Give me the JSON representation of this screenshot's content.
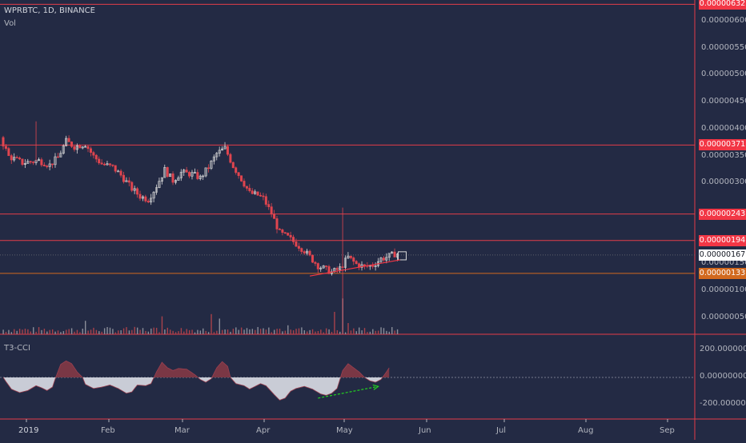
{
  "header": {
    "symbol": "WPRBTC, 1D, BINANCE",
    "volume_label": "Vol",
    "indicator_label": "T3-CCI"
  },
  "colors": {
    "background": "#232a44",
    "up": "#d9d9d9",
    "down": "#e0454f",
    "level_line": "#e33c48",
    "level_tag": "#f23645",
    "support_tag": "#d2691e",
    "cci_positive": "#7a3745",
    "cci_negative": "#c9ccd6",
    "divergence_arrow": "#22d41f"
  },
  "chart_data": {
    "type": "candlestick",
    "price_axis": {
      "ticks": [
        "0.00000600",
        "0.00000550",
        "0.00000500",
        "0.00000450",
        "0.00000400",
        "0.00000350",
        "0.00000300",
        "0.00000150",
        "0.00000100",
        "0.00000050"
      ],
      "ylim": [
        2e-07,
        6.4e-06
      ]
    },
    "time_axis": {
      "ticks": [
        "2019",
        "Feb",
        "Mar",
        "Apr",
        "May",
        "Jun",
        "Jul",
        "Aug",
        "Sep"
      ]
    },
    "horizontal_levels": [
      {
        "label": "0.00000632",
        "value": 6.32e-06,
        "kind": "resistance"
      },
      {
        "label": "0.00000371",
        "value": 3.71e-06,
        "kind": "resistance"
      },
      {
        "label": "0.00000243",
        "value": 2.43e-06,
        "kind": "resistance"
      },
      {
        "label": "0.00000194",
        "value": 1.94e-06,
        "kind": "resistance"
      },
      {
        "label": "0.00000167",
        "value": 1.67e-06,
        "kind": "last_price"
      },
      {
        "label": "0.00000133",
        "value": 1.33e-06,
        "kind": "support"
      }
    ],
    "cci_axis": {
      "ticks": [
        "200.00000000",
        "0.00000000",
        "-200.00000000"
      ],
      "ylim": [
        -290,
        290
      ]
    },
    "price_path": [
      [
        0,
        3.85e-06
      ],
      [
        3,
        3.5e-06
      ],
      [
        8,
        3.38e-06
      ],
      [
        14,
        3.42e-06
      ],
      [
        18,
        3.34e-06
      ],
      [
        21,
        3.48e-06
      ],
      [
        24,
        3.78e-06
      ],
      [
        27,
        3.68e-06
      ],
      [
        31,
        3.73e-06
      ],
      [
        34,
        3.5e-06
      ],
      [
        37,
        3.36e-06
      ],
      [
        41,
        3.3e-06
      ],
      [
        44,
        3.15e-06
      ],
      [
        48,
        2.9e-06
      ],
      [
        51,
        2.76e-06
      ],
      [
        54,
        2.7e-06
      ],
      [
        57,
        2.95e-06
      ],
      [
        60,
        3.25e-06
      ],
      [
        63,
        3.05e-06
      ],
      [
        66,
        3.2e-06
      ],
      [
        70,
        3.17e-06
      ],
      [
        73,
        3.1e-06
      ],
      [
        76,
        3.3e-06
      ],
      [
        79,
        3.55e-06
      ],
      [
        82,
        3.65e-06
      ],
      [
        85,
        3.32e-06
      ],
      [
        88,
        3.08e-06
      ],
      [
        91,
        2.82e-06
      ],
      [
        94,
        2.78e-06
      ],
      [
        96,
        2.72e-06
      ],
      [
        99,
        2.44e-06
      ],
      [
        102,
        2.08e-06
      ],
      [
        105,
        2e-06
      ],
      [
        108,
        1.88e-06
      ],
      [
        111,
        1.75e-06
      ],
      [
        114,
        1.58e-06
      ],
      [
        116,
        1.47e-06
      ],
      [
        119,
        1.4e-06
      ],
      [
        121,
        1.35e-06
      ],
      [
        124,
        1.42e-06
      ],
      [
        127,
        1.63e-06
      ],
      [
        130,
        1.5e-06
      ],
      [
        133,
        1.45e-06
      ],
      [
        136,
        1.48e-06
      ],
      [
        139,
        1.6e-06
      ],
      [
        141,
        1.63e-06
      ],
      [
        144,
        1.69e-06
      ]
    ],
    "candle_count": 145,
    "spikes": [
      {
        "day": 12,
        "high": 4.15e-06
      },
      {
        "day": 124,
        "high": 2.55e-06
      },
      {
        "day": 124,
        "low": 2e-07
      }
    ],
    "support_trendline": {
      "from": [
        112,
        1.28e-06
      ],
      "to": [
        145,
        1.58e-06
      ]
    },
    "cci_path": [
      [
        0,
        0
      ],
      [
        1,
        -30
      ],
      [
        3,
        -85
      ],
      [
        6,
        -110
      ],
      [
        9,
        -95
      ],
      [
        12,
        -60
      ],
      [
        14,
        -75
      ],
      [
        16,
        -95
      ],
      [
        18,
        -70
      ],
      [
        19,
        -10
      ],
      [
        21,
        95
      ],
      [
        23,
        120
      ],
      [
        25,
        100
      ],
      [
        27,
        40
      ],
      [
        29,
        0
      ],
      [
        30,
        -50
      ],
      [
        33,
        -80
      ],
      [
        36,
        -70
      ],
      [
        39,
        -55
      ],
      [
        42,
        -80
      ],
      [
        45,
        -115
      ],
      [
        47,
        -105
      ],
      [
        49,
        -55
      ],
      [
        52,
        -60
      ],
      [
        54,
        -45
      ],
      [
        56,
        40
      ],
      [
        58,
        110
      ],
      [
        60,
        70
      ],
      [
        62,
        50
      ],
      [
        64,
        65
      ],
      [
        67,
        60
      ],
      [
        70,
        20
      ],
      [
        72,
        -15
      ],
      [
        74,
        -35
      ],
      [
        76,
        -10
      ],
      [
        78,
        70
      ],
      [
        80,
        115
      ],
      [
        82,
        80
      ],
      [
        83,
        0
      ],
      [
        85,
        -45
      ],
      [
        88,
        -60
      ],
      [
        90,
        -85
      ],
      [
        92,
        -65
      ],
      [
        94,
        -45
      ],
      [
        96,
        -60
      ],
      [
        99,
        -125
      ],
      [
        101,
        -165
      ],
      [
        103,
        -150
      ],
      [
        105,
        -100
      ],
      [
        107,
        -80
      ],
      [
        110,
        -65
      ],
      [
        113,
        -85
      ],
      [
        116,
        -120
      ],
      [
        118,
        -130
      ],
      [
        120,
        -115
      ],
      [
        122,
        -80
      ],
      [
        124,
        50
      ],
      [
        126,
        100
      ],
      [
        128,
        70
      ],
      [
        130,
        40
      ],
      [
        132,
        0
      ],
      [
        134,
        -25
      ],
      [
        136,
        -35
      ],
      [
        138,
        -15
      ],
      [
        140,
        40
      ],
      [
        141,
        70
      ]
    ],
    "cci_divergence_arrow": {
      "from": [
        115,
        -150
      ],
      "to": [
        137,
        -65
      ]
    },
    "volume": [
      {
        "day": 30,
        "value": 0.6
      },
      {
        "day": 58,
        "value": 0.8
      },
      {
        "day": 76,
        "value": 0.9
      },
      {
        "day": 79,
        "value": 0.7
      },
      {
        "day": 104,
        "value": 0.4
      },
      {
        "day": 121,
        "value": 1.0
      },
      {
        "day": 124,
        "value": 1.6
      },
      {
        "day": 126,
        "value": 0.5
      }
    ]
  }
}
